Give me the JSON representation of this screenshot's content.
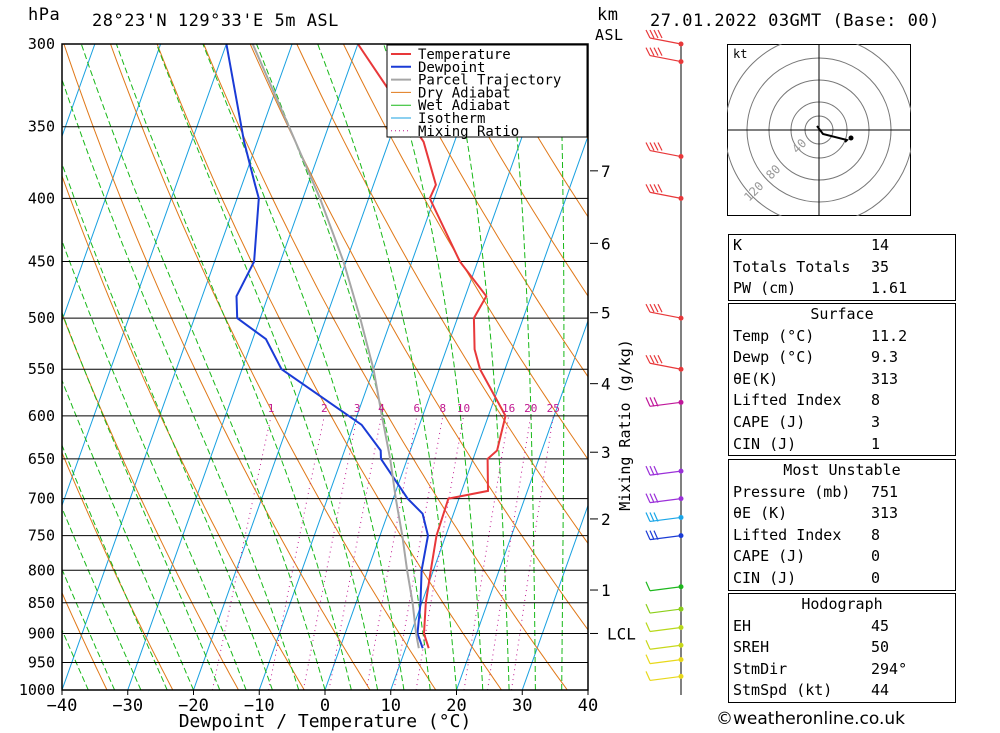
{
  "header": {
    "pressure_unit": "hPa",
    "location": "28°23'N  129°33'E  5m  ASL",
    "km_unit": "km",
    "km_unit2": "ASL",
    "datetime": "27.01.2022  03GMT  (Base: 00)"
  },
  "chart_data": {
    "type": "skew-t log-p",
    "xlabel": "Dewpoint / Temperature (°C)",
    "ylabel": "hPa",
    "mixing_ratio_axis_label": "Mixing Ratio (g/kg)",
    "xlim": [
      -40,
      40
    ],
    "ylim": [
      1000,
      300
    ],
    "x_ticks": [
      "−40",
      "−30",
      "−20",
      "−10",
      "0",
      "10",
      "20",
      "30",
      "40"
    ],
    "pressure_ticks": [
      300,
      350,
      400,
      450,
      500,
      550,
      600,
      650,
      700,
      750,
      800,
      850,
      900,
      950,
      1000
    ],
    "height_ticks_km": [
      {
        "label": "7",
        "p": 380
      },
      {
        "label": "6",
        "p": 435
      },
      {
        "label": "5",
        "p": 495
      },
      {
        "label": "4",
        "p": 565
      },
      {
        "label": "3",
        "p": 642
      },
      {
        "label": "2",
        "p": 727
      },
      {
        "label": "1",
        "p": 830
      },
      {
        "label": "LCL",
        "p": 900
      }
    ],
    "mixing_ratio_labels": [
      "1",
      "2",
      "3",
      "4",
      "6",
      "8",
      "10",
      "16",
      "20",
      "25"
    ],
    "legend": [
      "Temperature",
      "Dewpoint",
      "Parcel Trajectory",
      "Dry Adiabat",
      "Wet Adiabat",
      "Isotherm",
      "Mixing Ratio"
    ],
    "legend_placement": "top-right",
    "series": [
      {
        "name": "Temperature",
        "color": "#e8383a",
        "points": [
          [
            925,
            13.5
          ],
          [
            900,
            12.0
          ],
          [
            850,
            10.6
          ],
          [
            800,
            9.6
          ],
          [
            750,
            8.6
          ],
          [
            700,
            8.4
          ],
          [
            690,
            14.0
          ],
          [
            650,
            12.2
          ],
          [
            640,
            13.2
          ],
          [
            600,
            12.6
          ],
          [
            550,
            6.2
          ],
          [
            530,
            4.3
          ],
          [
            500,
            2.5
          ],
          [
            480,
            3.2
          ],
          [
            450,
            -2.7
          ],
          [
            400,
            -10.7
          ],
          [
            390,
            -10.5
          ],
          [
            360,
            -14.7
          ],
          [
            330,
            -22.0
          ],
          [
            300,
            -30.0
          ]
        ]
      },
      {
        "name": "Dewpoint",
        "color": "#1a3bd6",
        "points": [
          [
            925,
            12.6
          ],
          [
            900,
            11.0
          ],
          [
            850,
            9.8
          ],
          [
            800,
            8.2
          ],
          [
            750,
            7.3
          ],
          [
            720,
            5.3
          ],
          [
            700,
            2.2
          ],
          [
            650,
            -4.0
          ],
          [
            640,
            -4.5
          ],
          [
            610,
            -8.8
          ],
          [
            550,
            -24.0
          ],
          [
            520,
            -28.0
          ],
          [
            500,
            -33.5
          ],
          [
            480,
            -34.8
          ],
          [
            450,
            -34.0
          ],
          [
            400,
            -36.7
          ],
          [
            390,
            -38.0
          ],
          [
            360,
            -42.0
          ],
          [
            300,
            -50.0
          ]
        ]
      },
      {
        "name": "Parcel Trajectory",
        "color": "#a6a6a6",
        "points": [
          [
            925,
            12.0
          ],
          [
            900,
            10.8
          ],
          [
            850,
            8.6
          ],
          [
            800,
            6.0
          ],
          [
            750,
            3.4
          ],
          [
            700,
            0.4
          ],
          [
            650,
            -2.6
          ],
          [
            600,
            -6.2
          ],
          [
            550,
            -10.0
          ],
          [
            500,
            -14.8
          ],
          [
            450,
            -20.4
          ],
          [
            400,
            -27.4
          ],
          [
            350,
            -36.0
          ],
          [
            300,
            -46.0
          ]
        ]
      }
    ],
    "wind_barbs": [
      {
        "p": 300,
        "color": "#e8383a"
      },
      {
        "p": 310,
        "color": "#e8383a"
      },
      {
        "p": 370,
        "color": "#e8383a"
      },
      {
        "p": 400,
        "color": "#e8383a"
      },
      {
        "p": 500,
        "color": "#e8383a"
      },
      {
        "p": 550,
        "color": "#e8383a"
      },
      {
        "p": 585,
        "color": "#c0179a"
      },
      {
        "p": 665,
        "color": "#9b30d9"
      },
      {
        "p": 700,
        "color": "#9b30d9"
      },
      {
        "p": 725,
        "color": "#19a6e8"
      },
      {
        "p": 750,
        "color": "#1a3bd6"
      },
      {
        "p": 825,
        "color": "#1db81d"
      },
      {
        "p": 860,
        "color": "#8ccf1a"
      },
      {
        "p": 890,
        "color": "#b8d81a"
      },
      {
        "p": 920,
        "color": "#c8d81a"
      },
      {
        "p": 945,
        "color": "#e8d81a"
      },
      {
        "p": 975,
        "color": "#e8d81a"
      }
    ]
  },
  "hodograph": {
    "unit": "kt",
    "ring_labels": [
      "40",
      "80",
      "120"
    ]
  },
  "indices": [
    {
      "label": "K",
      "value": "14"
    },
    {
      "label": "Totals Totals",
      "value": "35"
    },
    {
      "label": "PW (cm)",
      "value": "1.61"
    }
  ],
  "surface": {
    "title": "Surface",
    "rows": [
      {
        "label": "Temp (°C)",
        "value": "11.2"
      },
      {
        "label": "Dewp (°C)",
        "value": "9.3"
      },
      {
        "label": "θE(K)",
        "value": "313"
      },
      {
        "label": "Lifted Index",
        "value": "8"
      },
      {
        "label": "CAPE (J)",
        "value": "3"
      },
      {
        "label": "CIN (J)",
        "value": "1"
      }
    ]
  },
  "most_unstable": {
    "title": "Most Unstable",
    "rows": [
      {
        "label": "Pressure (mb)",
        "value": "751"
      },
      {
        "label": "θE (K)",
        "value": "313"
      },
      {
        "label": "Lifted Index",
        "value": "8"
      },
      {
        "label": "CAPE (J)",
        "value": "0"
      },
      {
        "label": "CIN (J)",
        "value": "0"
      }
    ]
  },
  "hodograph_stats": {
    "title": "Hodograph",
    "rows": [
      {
        "label": "EH",
        "value": "45"
      },
      {
        "label": "SREH",
        "value": "50"
      },
      {
        "label": "StmDir",
        "value": "294°"
      },
      {
        "label": "StmSpd (kt)",
        "value": "44"
      }
    ]
  },
  "footer": "©weatheronline.co.uk",
  "colors": {
    "temperature": "#e8383a",
    "dewpoint": "#1a3bd6",
    "parcel": "#a6a6a6",
    "dry_adiabat": "#e07818",
    "wet_adiabat": "#18b818",
    "isotherm": "#18a0e0",
    "mixing_ratio": "#c01890"
  }
}
